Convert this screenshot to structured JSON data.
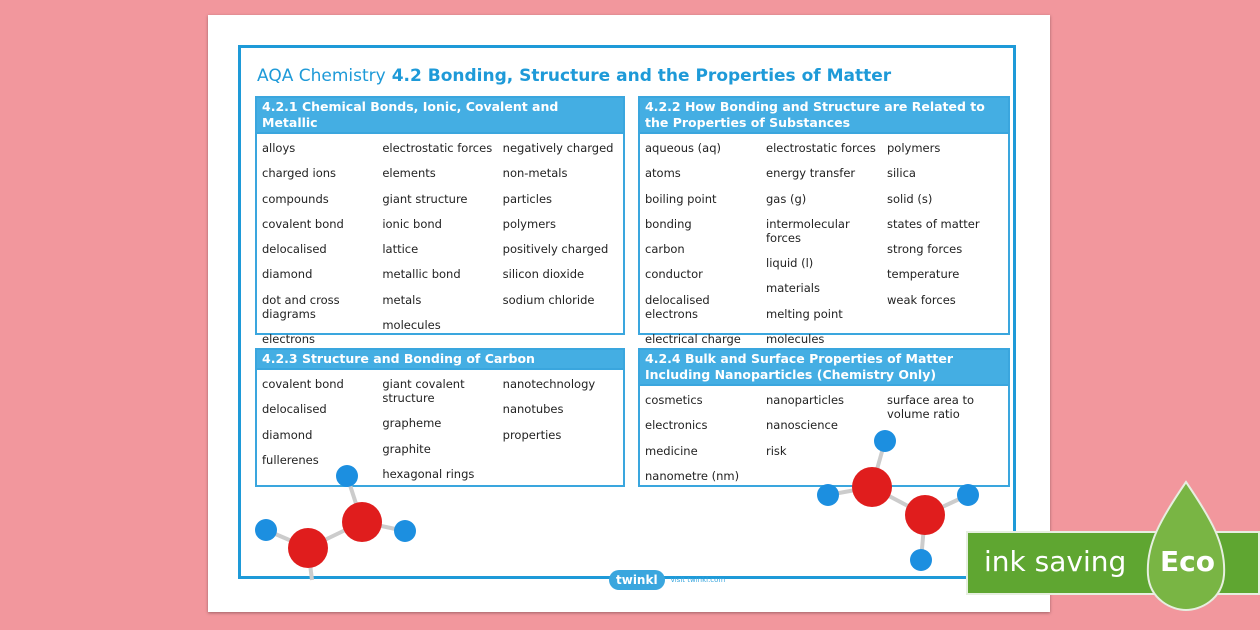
{
  "header": {
    "title_prefix": "AQA Chemistry",
    "title": "4.2 Bonding, Structure and the Properties of Matter"
  },
  "sections": [
    {
      "title": "4.2.1 Chemical Bonds, Ionic, Covalent and Metallic",
      "columns": [
        [
          "alloys",
          "charged ions",
          "compounds",
          "covalent bond",
          "delocalised",
          "diamond",
          "dot and cross diagrams",
          "electrons"
        ],
        [
          "electrostatic forces",
          "elements",
          "giant structure",
          "ionic bond",
          "lattice",
          "metallic bond",
          "metals",
          "molecules"
        ],
        [
          "negatively charged",
          "non-metals",
          "particles",
          "polymers",
          "positively charged",
          "silicon dioxide",
          "sodium chloride"
        ]
      ]
    },
    {
      "title": "4.2.2 How Bonding and Structure are Related to the Properties of Substances",
      "columns": [
        [
          "aqueous (aq)",
          "atoms",
          "boiling point",
          "bonding",
          "carbon",
          "conductor",
          "delocalised electrons",
          "electrical charge"
        ],
        [
          "electrostatic forces",
          "energy transfer",
          "gas (g)",
          "intermolecular forces",
          "liquid (l)",
          "materials",
          "melting point",
          "molecules"
        ],
        [
          "polymers",
          "silica",
          "solid (s)",
          "states of matter",
          "strong forces",
          "temperature",
          "weak forces"
        ]
      ]
    },
    {
      "title": "4.2.3 Structure and Bonding of Carbon",
      "columns": [
        [
          "covalent bond",
          "delocalised",
          "diamond",
          "fullerenes"
        ],
        [
          "giant covalent structure",
          "grapheme",
          "graphite",
          "hexagonal rings"
        ],
        [
          "nanotechnology",
          "nanotubes",
          "properties"
        ]
      ]
    },
    {
      "title": "4.2.4 Bulk and Surface Properties of Matter Including Nanoparticles (Chemistry Only)",
      "columns": [
        [
          "cosmetics",
          "electronics",
          "medicine",
          "nanometre (nm)"
        ],
        [
          "nanoparticles",
          "nanoscience",
          "risk"
        ],
        [
          "surface area to volume ratio"
        ]
      ]
    }
  ],
  "footer": {
    "logo": "twinkl",
    "url": "visit twinkl.com"
  },
  "badge": {
    "text": "ink saving",
    "label": "Eco"
  }
}
